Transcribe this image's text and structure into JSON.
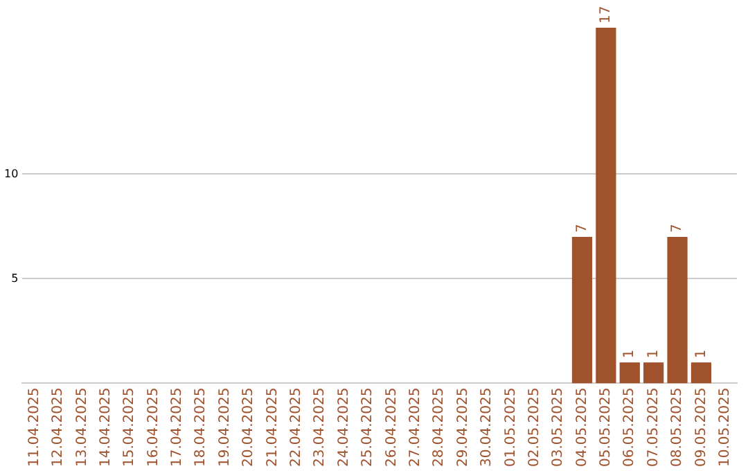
{
  "chart_data": {
    "type": "bar",
    "categories": [
      "11.04.2025",
      "12.04.2025",
      "13.04.2025",
      "14.04.2025",
      "15.04.2025",
      "16.04.2025",
      "17.04.2025",
      "18.04.2025",
      "19.04.2025",
      "20.04.2025",
      "21.04.2025",
      "22.04.2025",
      "23.04.2025",
      "24.04.2025",
      "25.04.2025",
      "26.04.2025",
      "27.04.2025",
      "28.04.2025",
      "29.04.2025",
      "30.04.2025",
      "01.05.2025",
      "02.05.2025",
      "03.05.2025",
      "04.05.2025",
      "05.05.2025",
      "06.05.2025",
      "07.05.2025",
      "08.05.2025",
      "09.05.2025",
      "10.05.2025"
    ],
    "values": [
      0,
      0,
      0,
      0,
      0,
      0,
      0,
      0,
      0,
      0,
      0,
      0,
      0,
      0,
      0,
      0,
      0,
      0,
      0,
      0,
      0,
      0,
      0,
      7,
      17,
      1,
      1,
      7,
      1,
      0
    ],
    "value_labels": [
      null,
      null,
      null,
      null,
      null,
      null,
      null,
      null,
      null,
      null,
      null,
      null,
      null,
      null,
      null,
      null,
      null,
      null,
      null,
      null,
      null,
      null,
      null,
      "7",
      "17",
      "1",
      "1",
      "7",
      "1",
      null
    ],
    "color": "#a0522d",
    "ylim": [
      0,
      17
    ],
    "yticks": [
      5,
      10
    ],
    "grid": "y",
    "legend": false
  }
}
